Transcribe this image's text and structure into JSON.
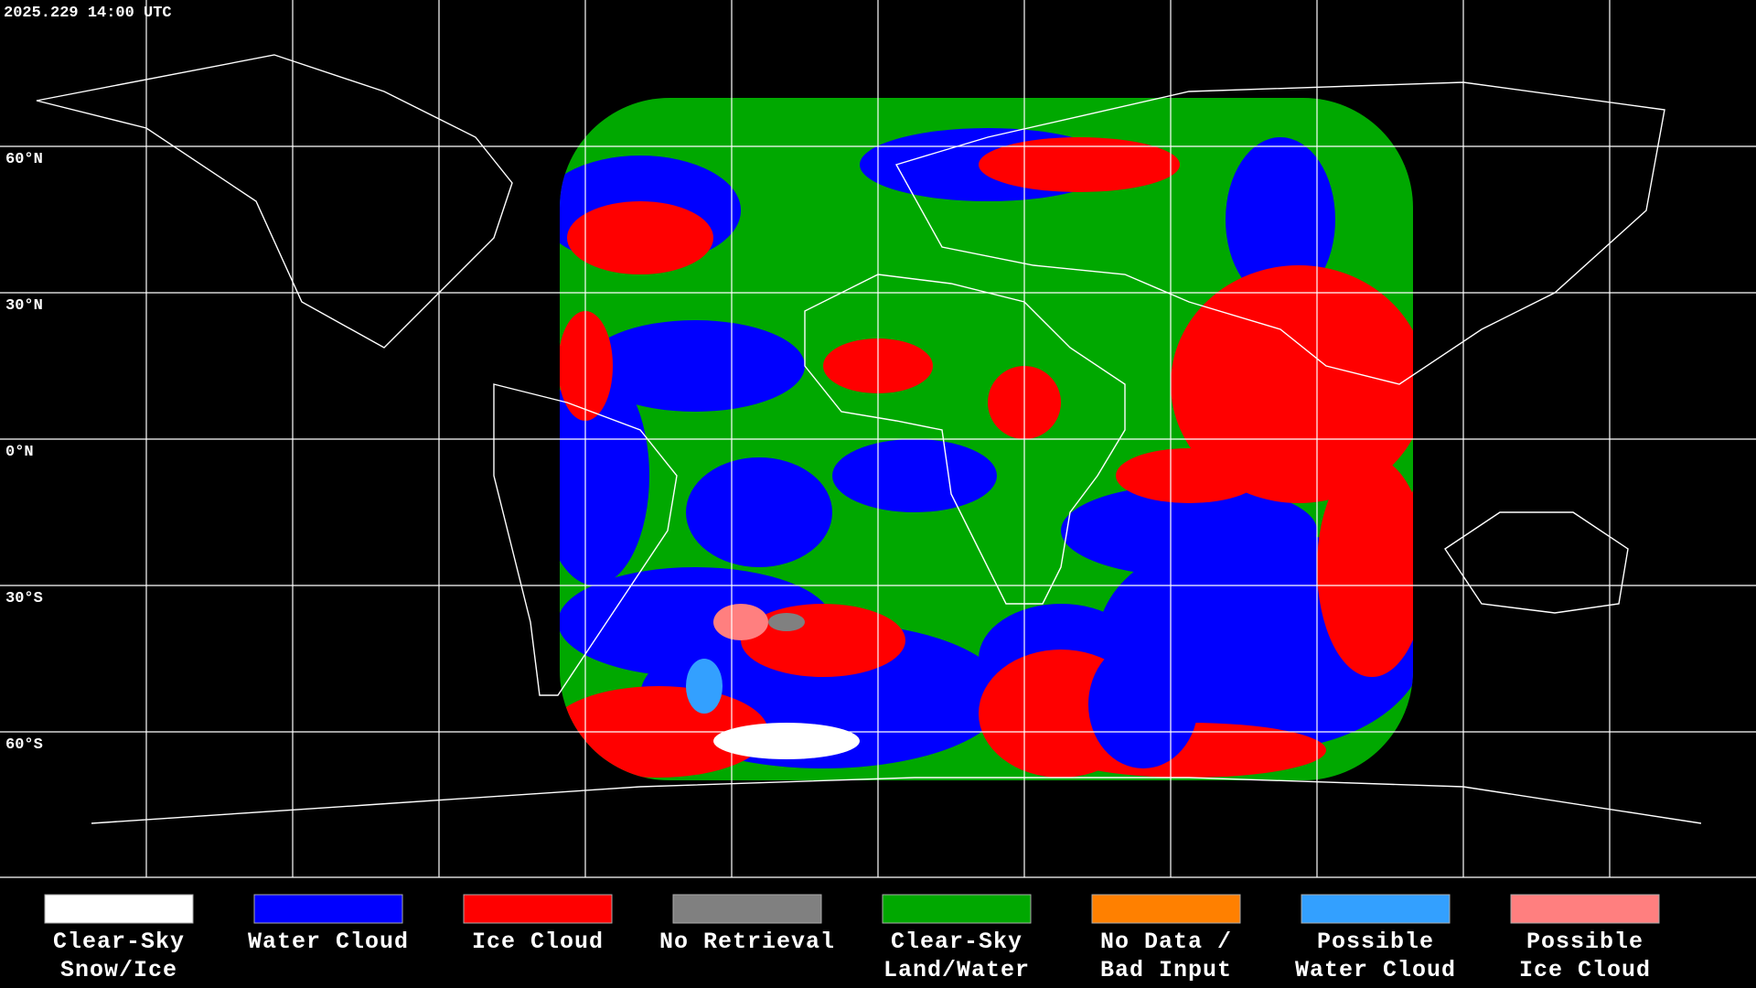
{
  "timestamp": "2025.229 14:00 UTC",
  "latitude_labels": [
    "60°N",
    "30°N",
    "0°N",
    "30°S",
    "60°S"
  ],
  "legend": [
    {
      "lines": [
        "Clear-Sky",
        "Snow/Ice"
      ],
      "color": "#ffffff"
    },
    {
      "lines": [
        "Water Cloud"
      ],
      "color": "#0000ff"
    },
    {
      "lines": [
        "Ice Cloud"
      ],
      "color": "#ff0000"
    },
    {
      "lines": [
        "No Retrieval"
      ],
      "color": "#808080"
    },
    {
      "lines": [
        "Clear-Sky",
        "Land/Water"
      ],
      "color": "#00a800"
    },
    {
      "lines": [
        "No Data /",
        "Bad Input"
      ],
      "color": "#ff8000"
    },
    {
      "lines": [
        "Possible",
        "Water Cloud"
      ],
      "color": "#33a0ff"
    },
    {
      "lines": [
        "Possible",
        "Ice Cloud"
      ],
      "color": "#ff7f7f"
    }
  ]
}
